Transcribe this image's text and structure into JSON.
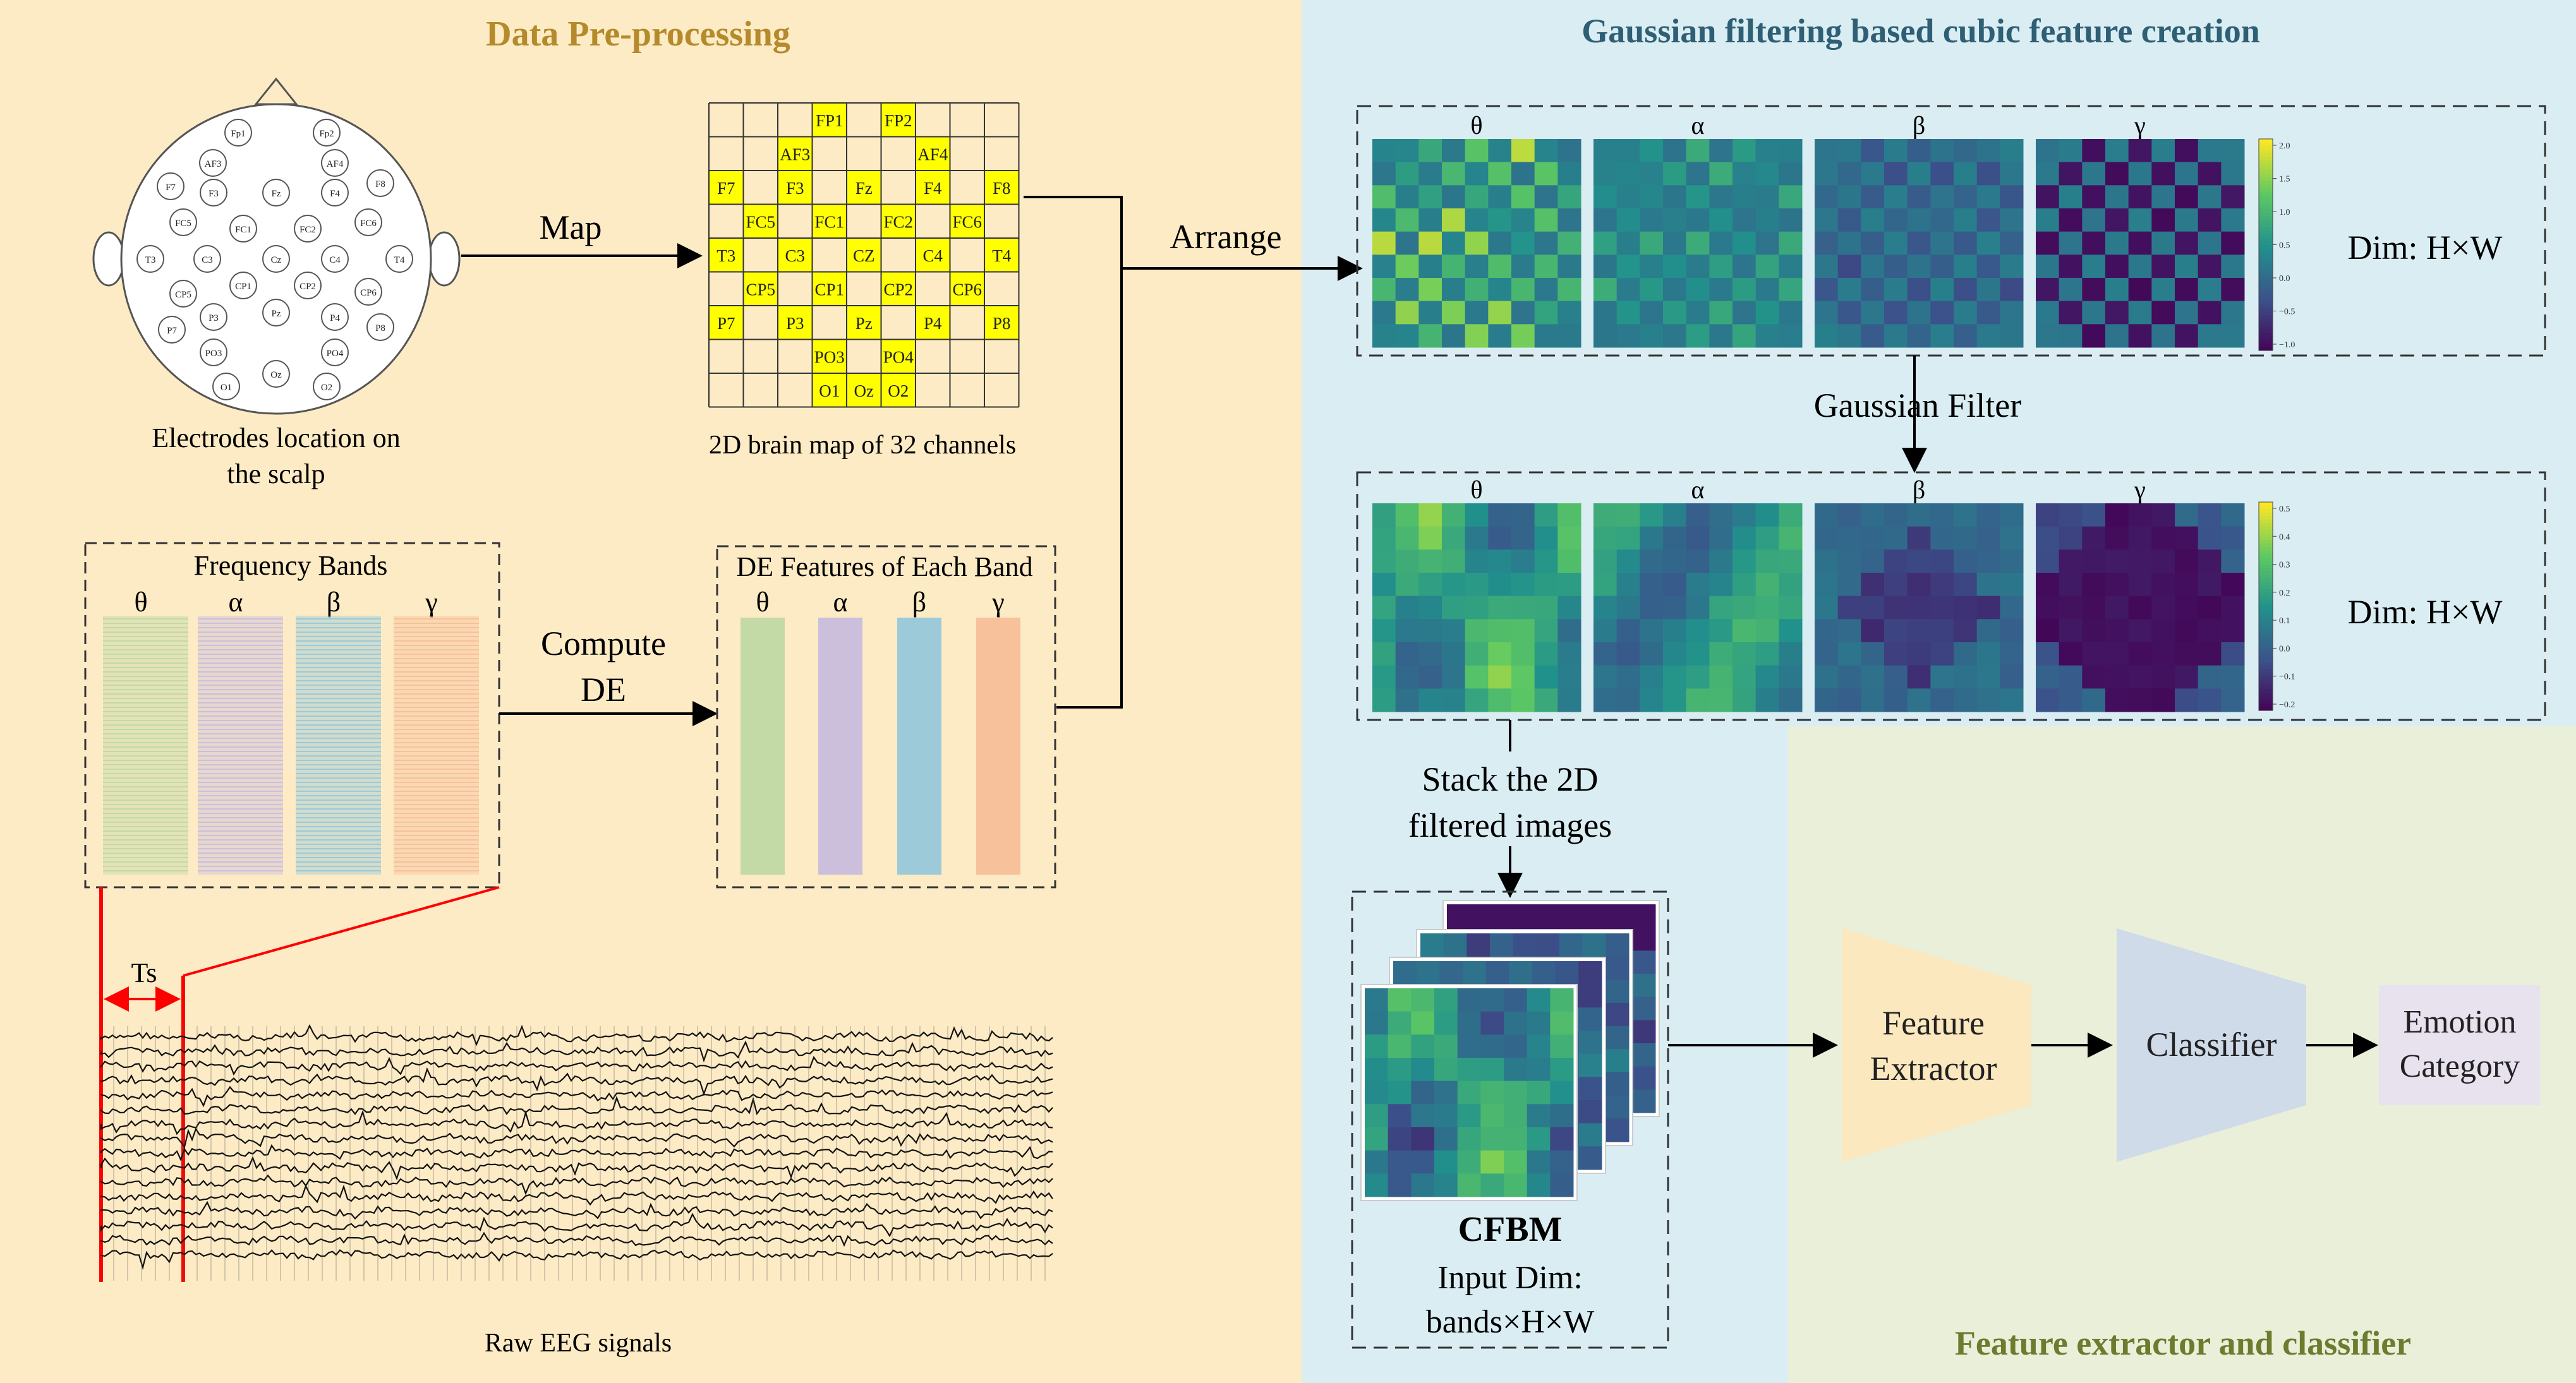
{
  "colors": {
    "preproc_bg": "#fdebc5",
    "gauss_bg": "#d9edf3",
    "classifier_bg": "#e9efd9",
    "preproc_title": "#b58a2a",
    "gauss_title": "#2e5f74",
    "classifier_title": "#6b7c2e",
    "grid_highlight": "#ffff00",
    "accent_red": "#ff0000",
    "band_theta": "#c3d9a6",
    "band_alpha": "#cbbfdc",
    "band_beta": "#9ccad8",
    "band_gamma": "#f6c19b",
    "extractor_shape": "#fbe8bf",
    "classifier_shape": "#cfdbe9",
    "emotion_box": "#e8e2ef"
  },
  "sections": {
    "preprocessing_title": "Data Pre-processing",
    "gaussian_title": "Gaussian filtering based cubic feature creation",
    "classifier_title": "Feature extractor and classifier"
  },
  "preprocessing": {
    "electrodes_caption_line1": "Electrodes location on",
    "electrodes_caption_line2": "the scalp",
    "map_label": "Map",
    "brainmap_caption": "2D brain map of 32 channels",
    "electrodes": [
      "Fp1",
      "Fp2",
      "AF3",
      "AF4",
      "F7",
      "F3",
      "Fz",
      "F4",
      "F8",
      "FC5",
      "FC1",
      "FC2",
      "FC6",
      "T3",
      "C3",
      "Cz",
      "C4",
      "T4",
      "CP5",
      "CP1",
      "CP2",
      "CP6",
      "P3",
      "Pz",
      "P4",
      "P7",
      "P8",
      "PO3",
      "PO4",
      "O1",
      "Oz",
      "O2"
    ],
    "grid_cells": [
      {
        "row": 0,
        "col": 3,
        "label": "FP1"
      },
      {
        "row": 0,
        "col": 5,
        "label": "FP2"
      },
      {
        "row": 1,
        "col": 2,
        "label": "AF3"
      },
      {
        "row": 1,
        "col": 6,
        "label": "AF4"
      },
      {
        "row": 2,
        "col": 0,
        "label": "F7"
      },
      {
        "row": 2,
        "col": 2,
        "label": "F3"
      },
      {
        "row": 2,
        "col": 4,
        "label": "Fz"
      },
      {
        "row": 2,
        "col": 6,
        "label": "F4"
      },
      {
        "row": 2,
        "col": 8,
        "label": "F8"
      },
      {
        "row": 3,
        "col": 1,
        "label": "FC5"
      },
      {
        "row": 3,
        "col": 3,
        "label": "FC1"
      },
      {
        "row": 3,
        "col": 5,
        "label": "FC2"
      },
      {
        "row": 3,
        "col": 7,
        "label": "FC6"
      },
      {
        "row": 4,
        "col": 0,
        "label": "T3"
      },
      {
        "row": 4,
        "col": 2,
        "label": "C3"
      },
      {
        "row": 4,
        "col": 4,
        "label": "CZ"
      },
      {
        "row": 4,
        "col": 6,
        "label": "C4"
      },
      {
        "row": 4,
        "col": 8,
        "label": "T4"
      },
      {
        "row": 5,
        "col": 1,
        "label": "CP5"
      },
      {
        "row": 5,
        "col": 3,
        "label": "CP1"
      },
      {
        "row": 5,
        "col": 5,
        "label": "CP2"
      },
      {
        "row": 5,
        "col": 7,
        "label": "CP6"
      },
      {
        "row": 6,
        "col": 0,
        "label": "P7"
      },
      {
        "row": 6,
        "col": 2,
        "label": "P3"
      },
      {
        "row": 6,
        "col": 4,
        "label": "Pz"
      },
      {
        "row": 6,
        "col": 6,
        "label": "P4"
      },
      {
        "row": 6,
        "col": 8,
        "label": "P8"
      },
      {
        "row": 7,
        "col": 3,
        "label": "PO3"
      },
      {
        "row": 7,
        "col": 5,
        "label": "PO4"
      },
      {
        "row": 8,
        "col": 3,
        "label": "O1"
      },
      {
        "row": 8,
        "col": 4,
        "label": "Oz"
      },
      {
        "row": 8,
        "col": 5,
        "label": "O2"
      }
    ],
    "frequency_bands_title": "Frequency Bands",
    "bands": [
      "θ",
      "α",
      "β",
      "γ"
    ],
    "compute_label_line1": "Compute",
    "compute_label_line2": "DE",
    "de_features_title": "DE Features of Each Band",
    "ts_label": "Ts",
    "raw_eeg_caption": "Raw EEG signals"
  },
  "gaussian": {
    "arrange_label": "Arrange",
    "bands": [
      "θ",
      "α",
      "β",
      "γ"
    ],
    "dim_label_top": "Dim: H×W",
    "dim_label_bottom": "Dim: H×W",
    "gaussian_filter_label": "Gaussian Filter",
    "colorbar_top_ticks": [
      "2.0",
      "1.5",
      "1.0",
      "0.5",
      "0.0",
      "−0.5",
      "−1.0"
    ],
    "colorbar_bottom_ticks": [
      "0.5",
      "0.4",
      "0.3",
      "0.2",
      "0.1",
      "0.0",
      "−0.1",
      "−0.2"
    ],
    "stack_label_line1": "Stack the 2D",
    "stack_label_line2": "filtered images",
    "cfbm_title": "CFBM",
    "cfbm_dim_line1": "Input Dim:",
    "cfbm_dim_line2": "bands×H×W"
  },
  "classifier": {
    "feature_extractor_line1": "Feature",
    "feature_extractor_line2": "Extractor",
    "classifier_label": "Classifier",
    "emotion_line1": "Emotion",
    "emotion_line2": "Category"
  }
}
